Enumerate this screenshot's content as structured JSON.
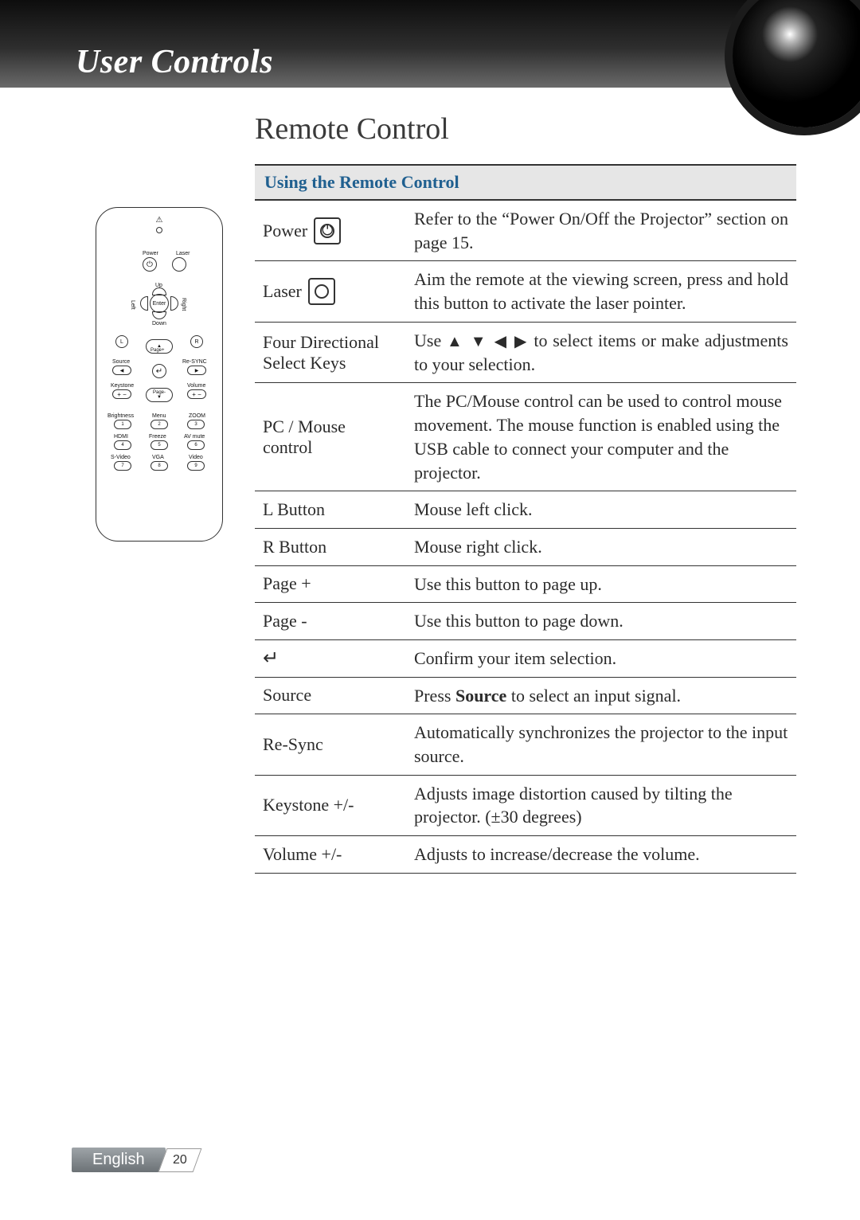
{
  "header": {
    "title": "User Controls"
  },
  "section": {
    "title": "Remote Control"
  },
  "table": {
    "header": "Using the Remote Control",
    "rows": [
      {
        "key": "Power",
        "desc_pre": "Refer to the “Power On/Off the Projector” section on page 15.",
        "icon": "power",
        "justify": true
      },
      {
        "key": "Laser",
        "desc_pre": "Aim the remote at the viewing screen, press and hold this button to activate the laser pointer.",
        "icon": "laser",
        "justify": true
      },
      {
        "key": "Four Directional Select Keys",
        "desc_pre": "Use ",
        "arrows": "▲ ▼ ◀ ▶",
        "desc_post": " to select items or make adjustments to your selection.",
        "justify": true
      },
      {
        "key": "PC / Mouse control",
        "desc_pre": "The PC/Mouse control can be used to control mouse movement. The mouse function is enabled using the USB cable to connect your computer and the projector."
      },
      {
        "key": "L Button",
        "desc_pre": "Mouse left click."
      },
      {
        "key": "R Button",
        "desc_pre": "Mouse right click."
      },
      {
        "key": "Page +",
        "desc_pre": "Use this button to page up."
      },
      {
        "key": "Page -",
        "desc_pre": "Use this button to page down."
      },
      {
        "key_sym": "↵",
        "desc_pre": "Confirm your item selection."
      },
      {
        "key": "Source",
        "desc_pre": "Press ",
        "bold": "Source",
        "desc_post": " to select an input signal."
      },
      {
        "key": "Re-Sync",
        "desc_pre": "Automatically synchronizes the projector to the input source."
      },
      {
        "key": "Keystone +/-",
        "desc_pre": "Adjusts image distortion caused by tilting the projector. (±30 degrees)"
      },
      {
        "key": "Volume +/-",
        "desc_pre": "Adjusts to increase/decrease the volume."
      }
    ]
  },
  "remote": {
    "labels": {
      "power": "Power",
      "laser": "Laser",
      "up": "Up",
      "down": "Down",
      "left": "Left",
      "right": "Right",
      "enter": "Enter",
      "l": "L",
      "r": "R",
      "pageplus": "Page+",
      "source": "Source",
      "resync": "Re-SYNC",
      "keystone": "Keystone",
      "volume": "Volume",
      "pageminus": "Page-",
      "brightness": "Brightness",
      "menu": "Menu",
      "zoom": "ZOOM",
      "hdmi": "HDMI",
      "freeze": "Freeze",
      "avmute": "AV mute",
      "svideo": "S-Video",
      "vga": "VGA",
      "video": "Video"
    },
    "nums": [
      "1",
      "2",
      "3",
      "4",
      "5",
      "6",
      "7",
      "8",
      "9"
    ]
  },
  "footer": {
    "language": "English",
    "page": "20"
  },
  "colors": {
    "header_gradient_top": "#0d0d0d",
    "header_gradient_bottom": "#6a6a6a",
    "table_header_bg": "#e6e6e6",
    "table_header_fg": "#206090",
    "border": "#333333",
    "text": "#2b2b2b",
    "footer_bg_top": "#9ea4a8",
    "footer_bg_bottom": "#6c7276"
  }
}
